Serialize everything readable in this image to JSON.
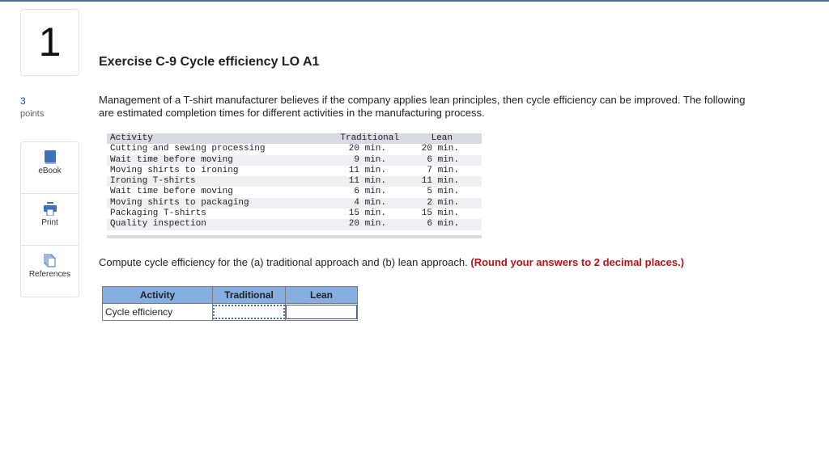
{
  "question": {
    "number": "1",
    "points": "3",
    "points_label": "points"
  },
  "tools": [
    {
      "label": "eBook",
      "icon": "book-icon"
    },
    {
      "label": "Print",
      "icon": "printer-icon"
    },
    {
      "label": "References",
      "icon": "copy-icon"
    }
  ],
  "title": "Exercise C-9 Cycle efficiency LO A1",
  "intro": "Management of a T-shirt manufacturer believes if the company applies lean principles, then cycle efficiency can be improved. The following are estimated completion times for different activities in the manufacturing process.",
  "data_table": {
    "headers": [
      "Activity",
      "Traditional",
      "Lean"
    ],
    "rows": [
      [
        "Cutting and sewing processing",
        "20 min.",
        "20 min."
      ],
      [
        "Wait time before moving",
        "9 min.",
        "6 min."
      ],
      [
        "Moving shirts to ironing",
        "11 min.",
        "7 min."
      ],
      [
        "Ironing T-shirts",
        "11 min.",
        "11 min."
      ],
      [
        "Wait time before moving",
        "6 min.",
        "5 min."
      ],
      [
        "Moving shirts to packaging",
        "4 min.",
        "2 min."
      ],
      [
        "Packaging T-shirts",
        "15 min.",
        "15 min."
      ],
      [
        "Quality inspection",
        "20 min.",
        "6 min."
      ]
    ]
  },
  "instruction": {
    "text": "Compute cycle efficiency for the (a) traditional approach and (b) lean approach.",
    "note": "(Round your answers to 2 decimal places.)"
  },
  "answer_table": {
    "headers": [
      "Activity",
      "Traditional",
      "Lean"
    ],
    "row_label": "Cycle efficiency",
    "traditional_value": "",
    "lean_value": ""
  }
}
